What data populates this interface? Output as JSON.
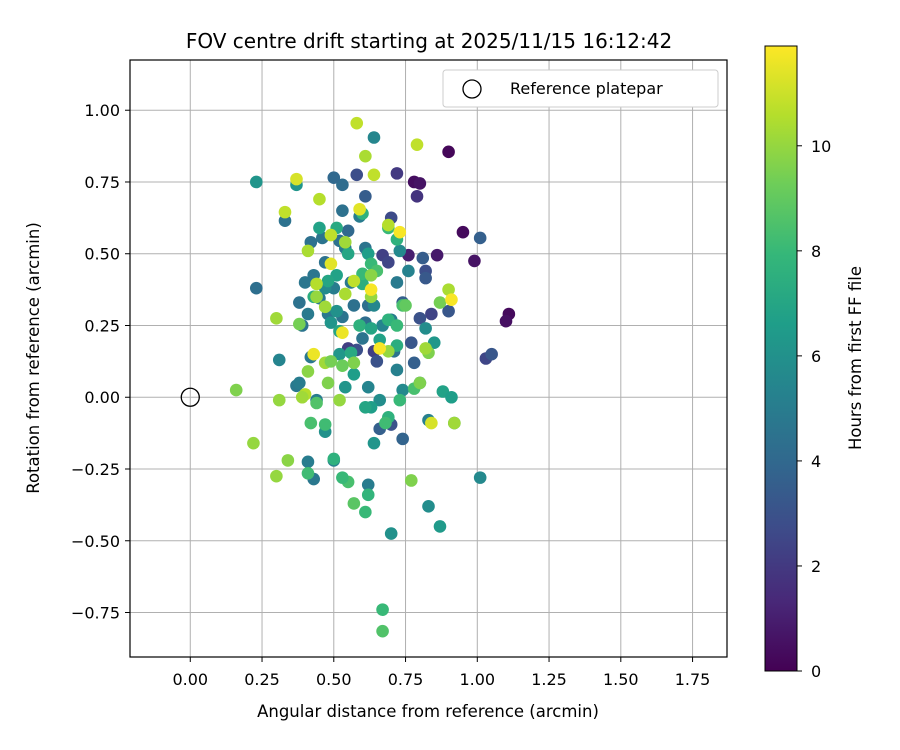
{
  "chart_data": {
    "type": "scatter",
    "title": "FOV centre drift starting at 2025/11/15 16:12:42",
    "xlabel": "Angular distance from reference (arcmin)",
    "ylabel": "Rotation from reference (arcmin)",
    "xlim": [
      -0.21,
      1.87
    ],
    "ylim": [
      -0.905,
      1.175
    ],
    "xticks": [
      "0.00",
      "0.25",
      "0.50",
      "0.75",
      "1.00",
      "1.25",
      "1.50",
      "1.75"
    ],
    "yticks": [
      "−0.75",
      "−0.50",
      "−0.25",
      "0.00",
      "0.25",
      "0.50",
      "0.75",
      "1.00"
    ],
    "grid": true,
    "legend": {
      "placement": "top-right",
      "entries": [
        "Reference platepar"
      ]
    },
    "colorbar": {
      "label": "Hours from first FF file",
      "colormap": "viridis",
      "range": [
        0,
        11.9
      ],
      "ticks": [
        "0",
        "2",
        "4",
        "6",
        "8",
        "10"
      ]
    },
    "reference_point": {
      "x": 0.0,
      "y": 0.0,
      "label": "Reference platepar"
    },
    "points": [
      {
        "x": 0.9,
        "y": 0.855,
        "c": 0.2
      },
      {
        "x": 0.95,
        "y": 0.575,
        "c": 0.3
      },
      {
        "x": 0.99,
        "y": 0.475,
        "c": 0.6
      },
      {
        "x": 1.11,
        "y": 0.29,
        "c": 0.3
      },
      {
        "x": 1.1,
        "y": 0.265,
        "c": 0.5
      },
      {
        "x": 0.78,
        "y": 0.75,
        "c": 0.4
      },
      {
        "x": 0.8,
        "y": 0.745,
        "c": 0.6
      },
      {
        "x": 0.72,
        "y": 0.78,
        "c": 2.0
      },
      {
        "x": 0.79,
        "y": 0.7,
        "c": 1.8
      },
      {
        "x": 0.86,
        "y": 0.495,
        "c": 0.8
      },
      {
        "x": 0.76,
        "y": 0.495,
        "c": 1.0
      },
      {
        "x": 1.03,
        "y": 0.135,
        "c": 2.5
      },
      {
        "x": 1.05,
        "y": 0.15,
        "c": 3.2
      },
      {
        "x": 1.01,
        "y": 0.555,
        "c": 3.6
      },
      {
        "x": 0.9,
        "y": 0.3,
        "c": 3.2
      },
      {
        "x": 0.82,
        "y": 0.44,
        "c": 2.8
      },
      {
        "x": 0.84,
        "y": 0.29,
        "c": 2.4
      },
      {
        "x": 0.8,
        "y": 0.275,
        "c": 3.0
      },
      {
        "x": 0.82,
        "y": 0.415,
        "c": 3.3
      },
      {
        "x": 0.81,
        "y": 0.485,
        "c": 3.5
      },
      {
        "x": 0.7,
        "y": 0.625,
        "c": 2.7
      },
      {
        "x": 0.67,
        "y": 0.495,
        "c": 2.3
      },
      {
        "x": 0.69,
        "y": 0.47,
        "c": 2.5
      },
      {
        "x": 0.64,
        "y": 0.16,
        "c": 2.2
      },
      {
        "x": 0.65,
        "y": 0.125,
        "c": 3.0
      },
      {
        "x": 0.58,
        "y": 0.165,
        "c": 2.9
      },
      {
        "x": 0.55,
        "y": 0.17,
        "c": 2.2
      },
      {
        "x": 0.74,
        "y": 0.33,
        "c": 3.6
      },
      {
        "x": 0.77,
        "y": 0.19,
        "c": 3.2
      },
      {
        "x": 0.78,
        "y": 0.12,
        "c": 3.6
      },
      {
        "x": 0.7,
        "y": -0.095,
        "c": 3.0
      },
      {
        "x": 0.66,
        "y": -0.11,
        "c": 3.6
      },
      {
        "x": 0.74,
        "y": -0.145,
        "c": 3.8
      },
      {
        "x": 0.58,
        "y": 0.775,
        "c": 2.8
      },
      {
        "x": 0.61,
        "y": 0.7,
        "c": 3.5
      },
      {
        "x": 0.53,
        "y": 0.74,
        "c": 4.2
      },
      {
        "x": 0.5,
        "y": 0.765,
        "c": 4.0
      },
      {
        "x": 0.53,
        "y": 0.65,
        "c": 4.4
      },
      {
        "x": 0.55,
        "y": 0.58,
        "c": 4.0
      },
      {
        "x": 0.59,
        "y": 0.63,
        "c": 5.0
      },
      {
        "x": 0.64,
        "y": 0.905,
        "c": 5.5
      },
      {
        "x": 0.52,
        "y": 0.545,
        "c": 4.4
      },
      {
        "x": 0.46,
        "y": 0.555,
        "c": 4.6
      },
      {
        "x": 0.42,
        "y": 0.54,
        "c": 4.4
      },
      {
        "x": 0.33,
        "y": 0.615,
        "c": 4.5
      },
      {
        "x": 0.23,
        "y": 0.38,
        "c": 4.3
      },
      {
        "x": 0.23,
        "y": 0.75,
        "c": 6.2
      },
      {
        "x": 0.37,
        "y": 0.74,
        "c": 6.2
      },
      {
        "x": 0.48,
        "y": 0.29,
        "c": 4.8
      },
      {
        "x": 0.43,
        "y": 0.425,
        "c": 4.7
      },
      {
        "x": 0.4,
        "y": 0.4,
        "c": 4.7
      },
      {
        "x": 0.38,
        "y": 0.33,
        "c": 4.5
      },
      {
        "x": 0.45,
        "y": 0.345,
        "c": 4.9
      },
      {
        "x": 0.47,
        "y": 0.47,
        "c": 4.5
      },
      {
        "x": 0.5,
        "y": 0.38,
        "c": 5.0
      },
      {
        "x": 0.54,
        "y": 0.52,
        "c": 5.0
      },
      {
        "x": 0.56,
        "y": 0.4,
        "c": 4.8
      },
      {
        "x": 0.61,
        "y": 0.52,
        "c": 4.6
      },
      {
        "x": 0.61,
        "y": 0.26,
        "c": 4.2
      },
      {
        "x": 0.62,
        "y": 0.32,
        "c": 4.3
      },
      {
        "x": 0.57,
        "y": 0.32,
        "c": 4.4
      },
      {
        "x": 0.53,
        "y": 0.28,
        "c": 4.6
      },
      {
        "x": 0.6,
        "y": 0.205,
        "c": 4.6
      },
      {
        "x": 0.64,
        "y": 0.32,
        "c": 5.5
      },
      {
        "x": 0.67,
        "y": 0.25,
        "c": 5.4
      },
      {
        "x": 0.7,
        "y": 0.27,
        "c": 5.0
      },
      {
        "x": 0.72,
        "y": 0.4,
        "c": 4.9
      },
      {
        "x": 0.76,
        "y": 0.44,
        "c": 5.3
      },
      {
        "x": 0.73,
        "y": 0.51,
        "c": 5.6
      },
      {
        "x": 0.71,
        "y": 0.16,
        "c": 4.6
      },
      {
        "x": 0.72,
        "y": 0.095,
        "c": 5.2
      },
      {
        "x": 0.8,
        "y": 0.05,
        "c": 5.4
      },
      {
        "x": 0.74,
        "y": 0.025,
        "c": 5.6
      },
      {
        "x": 0.66,
        "y": -0.01,
        "c": 5.8
      },
      {
        "x": 0.62,
        "y": 0.035,
        "c": 5.4
      },
      {
        "x": 0.54,
        "y": 0.035,
        "c": 6.2
      },
      {
        "x": 0.44,
        "y": -0.01,
        "c": 5.0
      },
      {
        "x": 0.47,
        "y": -0.12,
        "c": 6.0
      },
      {
        "x": 0.43,
        "y": -0.285,
        "c": 4.8
      },
      {
        "x": 0.41,
        "y": -0.225,
        "c": 5.0
      },
      {
        "x": 0.5,
        "y": -0.22,
        "c": 5.2
      },
      {
        "x": 0.62,
        "y": -0.305,
        "c": 5.0
      },
      {
        "x": 0.63,
        "y": -0.035,
        "c": 6.6
      },
      {
        "x": 0.61,
        "y": -0.035,
        "c": 7.0
      },
      {
        "x": 0.64,
        "y": -0.16,
        "c": 6.2
      },
      {
        "x": 0.83,
        "y": -0.08,
        "c": 5.2
      },
      {
        "x": 0.83,
        "y": -0.38,
        "c": 5.8
      },
      {
        "x": 0.87,
        "y": -0.45,
        "c": 6.4
      },
      {
        "x": 0.7,
        "y": -0.475,
        "c": 6.0
      },
      {
        "x": 1.01,
        "y": -0.28,
        "c": 5.6
      },
      {
        "x": 0.92,
        "y": -0.09,
        "c": 6.4
      },
      {
        "x": 0.88,
        "y": 0.02,
        "c": 6.8
      },
      {
        "x": 0.91,
        "y": 0.0,
        "c": 6.6
      },
      {
        "x": 0.85,
        "y": 0.19,
        "c": 6.3
      },
      {
        "x": 0.82,
        "y": 0.24,
        "c": 5.8
      },
      {
        "x": 0.31,
        "y": 0.13,
        "c": 5.4
      },
      {
        "x": 0.37,
        "y": 0.04,
        "c": 4.8
      },
      {
        "x": 0.38,
        "y": 0.05,
        "c": 5.0
      },
      {
        "x": 0.42,
        "y": 0.14,
        "c": 4.8
      },
      {
        "x": 0.39,
        "y": 0.25,
        "c": 4.6
      },
      {
        "x": 0.41,
        "y": 0.29,
        "c": 4.9
      },
      {
        "x": 0.47,
        "y": 0.38,
        "c": 5.7
      },
      {
        "x": 0.49,
        "y": 0.26,
        "c": 6.2
      },
      {
        "x": 0.51,
        "y": 0.3,
        "c": 6.0
      },
      {
        "x": 0.52,
        "y": 0.15,
        "c": 6.3
      },
      {
        "x": 0.57,
        "y": 0.08,
        "c": 6.6
      },
      {
        "x": 0.52,
        "y": 0.23,
        "c": 7.0
      },
      {
        "x": 0.56,
        "y": 0.155,
        "c": 7.2
      },
      {
        "x": 0.51,
        "y": 0.425,
        "c": 6.8
      },
      {
        "x": 0.48,
        "y": 0.405,
        "c": 7.0
      },
      {
        "x": 0.43,
        "y": 0.35,
        "c": 7.4
      },
      {
        "x": 0.45,
        "y": 0.59,
        "c": 6.8
      },
      {
        "x": 0.51,
        "y": 0.59,
        "c": 7.2
      },
      {
        "x": 0.55,
        "y": 0.5,
        "c": 7.0
      },
      {
        "x": 0.62,
        "y": 0.5,
        "c": 6.6
      },
      {
        "x": 0.6,
        "y": 0.395,
        "c": 7.4
      },
      {
        "x": 0.63,
        "y": 0.465,
        "c": 8.0
      },
      {
        "x": 0.65,
        "y": 0.44,
        "c": 8.4
      },
      {
        "x": 0.6,
        "y": 0.43,
        "c": 8.0
      },
      {
        "x": 0.59,
        "y": 0.25,
        "c": 7.6
      },
      {
        "x": 0.63,
        "y": 0.24,
        "c": 7.0
      },
      {
        "x": 0.66,
        "y": 0.2,
        "c": 6.8
      },
      {
        "x": 0.69,
        "y": 0.27,
        "c": 7.6
      },
      {
        "x": 0.72,
        "y": 0.25,
        "c": 8.0
      },
      {
        "x": 0.72,
        "y": 0.18,
        "c": 7.4
      },
      {
        "x": 0.74,
        "y": 0.32,
        "c": 8.4
      },
      {
        "x": 0.72,
        "y": 0.55,
        "c": 7.6
      },
      {
        "x": 0.69,
        "y": 0.59,
        "c": 8.0
      },
      {
        "x": 0.6,
        "y": 0.64,
        "c": 7.6
      },
      {
        "x": 0.78,
        "y": 0.03,
        "c": 8.4
      },
      {
        "x": 0.73,
        "y": -0.01,
        "c": 8.0
      },
      {
        "x": 0.69,
        "y": -0.07,
        "c": 7.6
      },
      {
        "x": 0.68,
        "y": -0.09,
        "c": 8.2
      },
      {
        "x": 0.62,
        "y": -0.34,
        "c": 7.8
      },
      {
        "x": 0.61,
        "y": -0.4,
        "c": 8.0
      },
      {
        "x": 0.55,
        "y": -0.295,
        "c": 8.4
      },
      {
        "x": 0.53,
        "y": -0.28,
        "c": 8.0
      },
      {
        "x": 0.5,
        "y": -0.215,
        "c": 7.6
      },
      {
        "x": 0.47,
        "y": -0.095,
        "c": 8.2
      },
      {
        "x": 0.44,
        "y": -0.02,
        "c": 8.6
      },
      {
        "x": 0.42,
        "y": -0.09,
        "c": 8.4
      },
      {
        "x": 0.41,
        "y": -0.265,
        "c": 8.2
      },
      {
        "x": 0.57,
        "y": -0.37,
        "c": 8.8
      },
      {
        "x": 0.67,
        "y": -0.74,
        "c": 8.0
      },
      {
        "x": 0.67,
        "y": -0.815,
        "c": 8.6
      },
      {
        "x": 0.77,
        "y": -0.29,
        "c": 9.6
      },
      {
        "x": 0.92,
        "y": -0.09,
        "c": 10.2
      },
      {
        "x": 0.8,
        "y": 0.05,
        "c": 9.6
      },
      {
        "x": 0.83,
        "y": 0.155,
        "c": 9.6
      },
      {
        "x": 0.9,
        "y": 0.375,
        "c": 10.4
      },
      {
        "x": 0.87,
        "y": 0.33,
        "c": 9.4
      },
      {
        "x": 0.82,
        "y": 0.17,
        "c": 10.2
      },
      {
        "x": 0.75,
        "y": 0.32,
        "c": 9.0
      },
      {
        "x": 0.69,
        "y": 0.16,
        "c": 10.0
      },
      {
        "x": 0.57,
        "y": 0.12,
        "c": 9.6
      },
      {
        "x": 0.53,
        "y": 0.11,
        "c": 9.2
      },
      {
        "x": 0.52,
        "y": -0.01,
        "c": 10.0
      },
      {
        "x": 0.48,
        "y": 0.05,
        "c": 9.6
      },
      {
        "x": 0.47,
        "y": 0.12,
        "c": 10.2
      },
      {
        "x": 0.49,
        "y": 0.125,
        "c": 9.4
      },
      {
        "x": 0.41,
        "y": 0.09,
        "c": 9.8
      },
      {
        "x": 0.4,
        "y": 0.01,
        "c": 10.6
      },
      {
        "x": 0.39,
        "y": 0.0,
        "c": 10.2
      },
      {
        "x": 0.31,
        "y": -0.01,
        "c": 10.0
      },
      {
        "x": 0.3,
        "y": -0.275,
        "c": 10.0
      },
      {
        "x": 0.34,
        "y": -0.22,
        "c": 9.8
      },
      {
        "x": 0.22,
        "y": -0.16,
        "c": 10.0
      },
      {
        "x": 0.16,
        "y": 0.025,
        "c": 9.6
      },
      {
        "x": 0.3,
        "y": 0.275,
        "c": 10.2
      },
      {
        "x": 0.38,
        "y": 0.255,
        "c": 9.4
      },
      {
        "x": 0.44,
        "y": 0.35,
        "c": 10.0
      },
      {
        "x": 0.47,
        "y": 0.315,
        "c": 10.2
      },
      {
        "x": 0.54,
        "y": 0.36,
        "c": 10.4
      },
      {
        "x": 0.57,
        "y": 0.405,
        "c": 10.8
      },
      {
        "x": 0.63,
        "y": 0.35,
        "c": 10.0
      },
      {
        "x": 0.63,
        "y": 0.425,
        "c": 9.8
      },
      {
        "x": 0.41,
        "y": 0.51,
        "c": 10.4
      },
      {
        "x": 0.44,
        "y": 0.395,
        "c": 10.6
      },
      {
        "x": 0.49,
        "y": 0.565,
        "c": 10.8
      },
      {
        "x": 0.54,
        "y": 0.54,
        "c": 10.2
      },
      {
        "x": 0.45,
        "y": 0.69,
        "c": 10.6
      },
      {
        "x": 0.33,
        "y": 0.645,
        "c": 10.8
      },
      {
        "x": 0.37,
        "y": 0.76,
        "c": 11.2
      },
      {
        "x": 0.58,
        "y": 0.955,
        "c": 10.8
      },
      {
        "x": 0.61,
        "y": 0.84,
        "c": 10.4
      },
      {
        "x": 0.64,
        "y": 0.775,
        "c": 10.8
      },
      {
        "x": 0.79,
        "y": 0.88,
        "c": 10.8
      },
      {
        "x": 0.59,
        "y": 0.655,
        "c": 11.4
      },
      {
        "x": 0.69,
        "y": 0.6,
        "c": 10.6
      },
      {
        "x": 0.73,
        "y": 0.575,
        "c": 11.8
      },
      {
        "x": 0.49,
        "y": 0.465,
        "c": 11.4
      },
      {
        "x": 0.63,
        "y": 0.375,
        "c": 11.8
      },
      {
        "x": 0.53,
        "y": 0.225,
        "c": 11.6
      },
      {
        "x": 0.66,
        "y": 0.17,
        "c": 11.8
      },
      {
        "x": 0.43,
        "y": 0.15,
        "c": 11.6
      },
      {
        "x": 0.84,
        "y": -0.09,
        "c": 11.2
      },
      {
        "x": 0.91,
        "y": 0.34,
        "c": 11.8
      }
    ]
  }
}
